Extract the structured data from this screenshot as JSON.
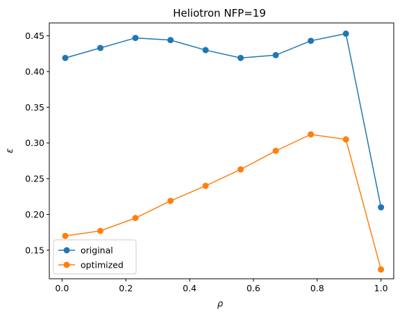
{
  "chart_data": {
    "type": "line",
    "title": "Heliotron NFP=19",
    "xlabel": "ρ",
    "ylabel": "ε",
    "xlim": [
      -0.04,
      1.04
    ],
    "ylim": [
      0.11,
      0.468
    ],
    "x_ticks": [
      0.0,
      0.2,
      0.4,
      0.6,
      0.8,
      1.0
    ],
    "x_tick_labels": [
      "0.0",
      "0.2",
      "0.4",
      "0.6",
      "0.8",
      "1.0"
    ],
    "y_ticks": [
      0.15,
      0.2,
      0.25,
      0.3,
      0.35,
      0.4,
      0.45
    ],
    "y_tick_labels": [
      "0.15",
      "0.20",
      "0.25",
      "0.30",
      "0.35",
      "0.40",
      "0.45"
    ],
    "x": [
      0.01,
      0.12,
      0.23,
      0.34,
      0.45,
      0.56,
      0.67,
      0.78,
      0.89,
      1.0
    ],
    "series": [
      {
        "name": "original",
        "color": "#1f77b4",
        "values": [
          0.419,
          0.433,
          0.447,
          0.444,
          0.43,
          0.419,
          0.423,
          0.443,
          0.453,
          0.21
        ]
      },
      {
        "name": "optimized",
        "color": "#ff7f0e",
        "values": [
          0.17,
          0.177,
          0.195,
          0.219,
          0.24,
          0.263,
          0.289,
          0.312,
          0.305,
          0.123
        ]
      }
    ],
    "legend_position": "lower-left",
    "grid": false
  }
}
